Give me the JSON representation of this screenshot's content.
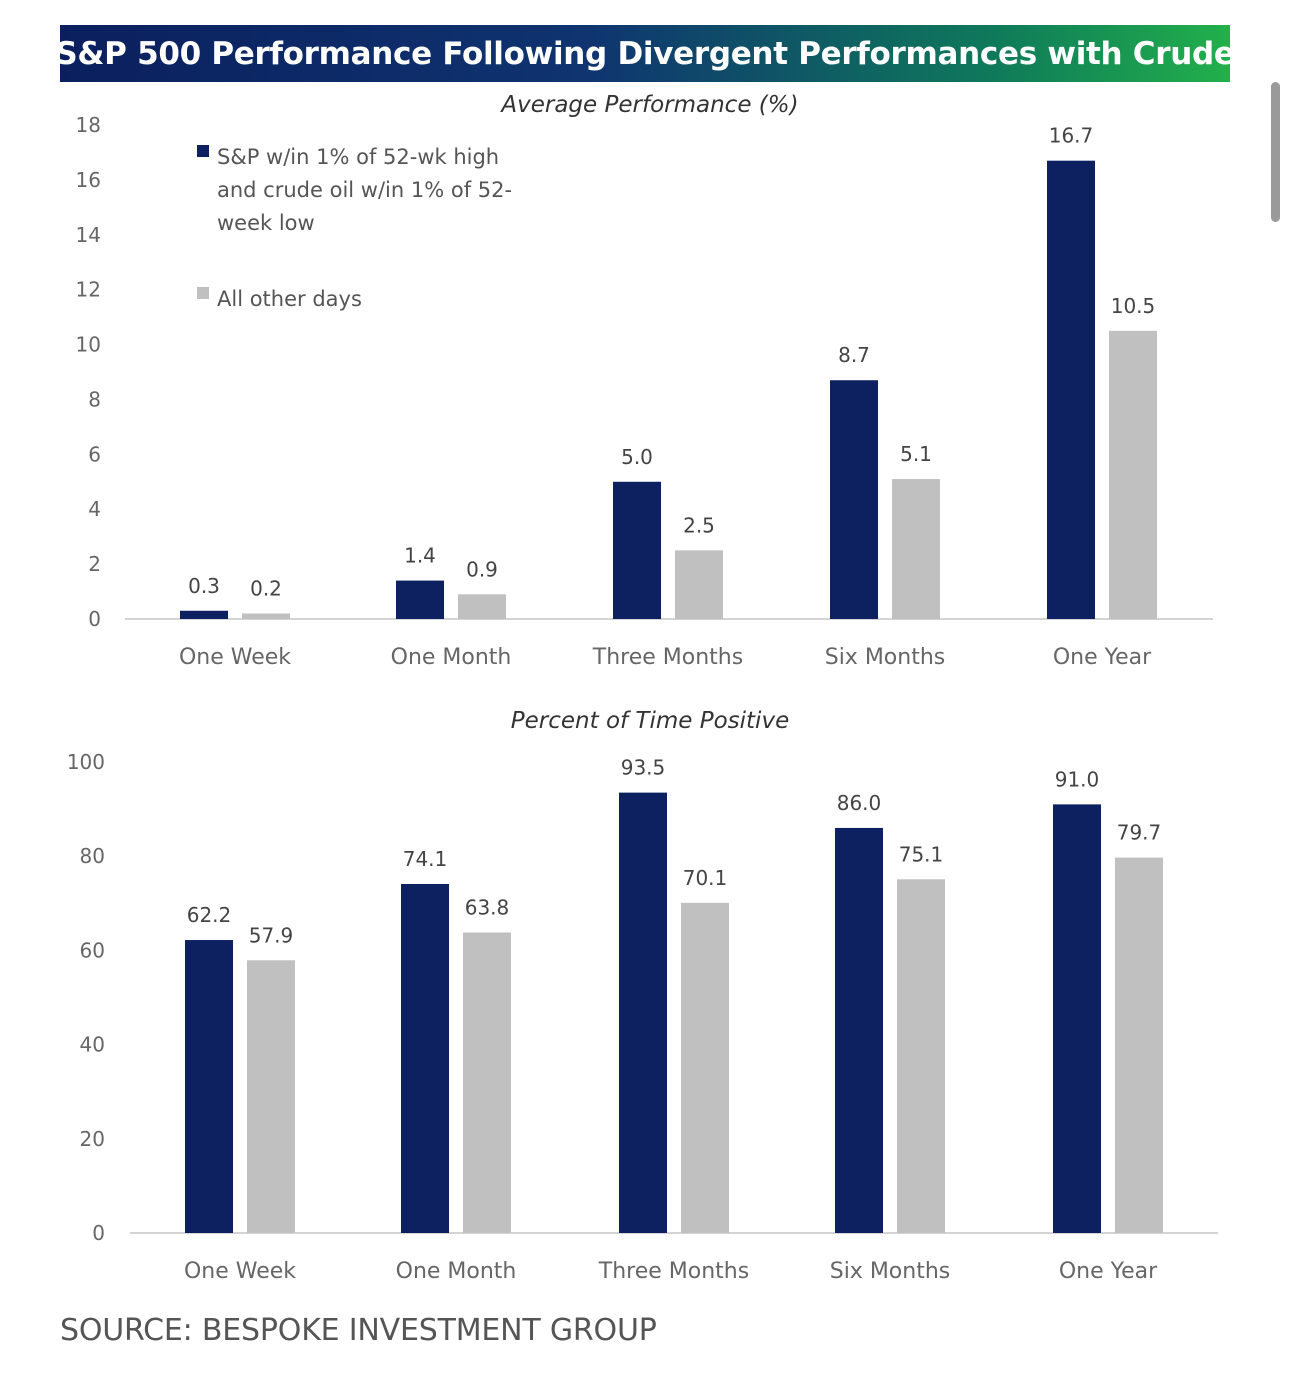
{
  "banner_title": "S&P 500 Performance Following Divergent Performances with Crude",
  "source": "SOURCE: BESPOKE INVESTMENT GROUP",
  "colors": {
    "primary": "#0d2060",
    "secondary": "#c0c0c0",
    "axis": "#d4d4d4"
  },
  "chart_data": [
    {
      "type": "bar",
      "title": "Average Performance (%)",
      "categories": [
        "One Week",
        "One Month",
        "Three Months",
        "Six Months",
        "One Year"
      ],
      "series": [
        {
          "name": "S&P w/in 1% of 52-wk high and crude oil w/in 1% of 52-week low",
          "legend_lines": [
            "S&P w/in 1% of 52-wk high",
            "and crude oil w/in 1% of 52-",
            "week low"
          ],
          "values": [
            0.3,
            1.4,
            5.0,
            8.7,
            16.7
          ],
          "labels": [
            "0.3",
            "1.4",
            "5.0",
            "8.7",
            "16.7"
          ]
        },
        {
          "name": "All other days",
          "legend_lines": [
            "All other days"
          ],
          "values": [
            0.2,
            0.9,
            2.5,
            5.1,
            10.5
          ],
          "labels": [
            "0.2",
            "0.9",
            "2.5",
            "5.1",
            "10.5"
          ]
        }
      ],
      "ylim": [
        0,
        18
      ],
      "yticks": [
        0,
        2,
        4,
        6,
        8,
        10,
        12,
        14,
        16,
        18
      ],
      "legend": "top-left",
      "grid": false
    },
    {
      "type": "bar",
      "title": "Percent of Time Positive",
      "categories": [
        "One Week",
        "One Month",
        "Three Months",
        "Six Months",
        "One Year"
      ],
      "series": [
        {
          "name": "S&P w/in 1% of 52-wk high and crude oil w/in 1% of 52-week low",
          "values": [
            62.2,
            74.1,
            93.5,
            86.0,
            91.0
          ],
          "labels": [
            "62.2",
            "74.1",
            "93.5",
            "86.0",
            "91.0"
          ]
        },
        {
          "name": "All other days",
          "values": [
            57.9,
            63.8,
            70.1,
            75.1,
            79.7
          ],
          "labels": [
            "57.9",
            "63.8",
            "70.1",
            "75.1",
            "79.7"
          ]
        }
      ],
      "ylim": [
        0,
        100
      ],
      "yticks": [
        0,
        20,
        40,
        60,
        80,
        100
      ],
      "legend": "none",
      "grid": false
    }
  ]
}
